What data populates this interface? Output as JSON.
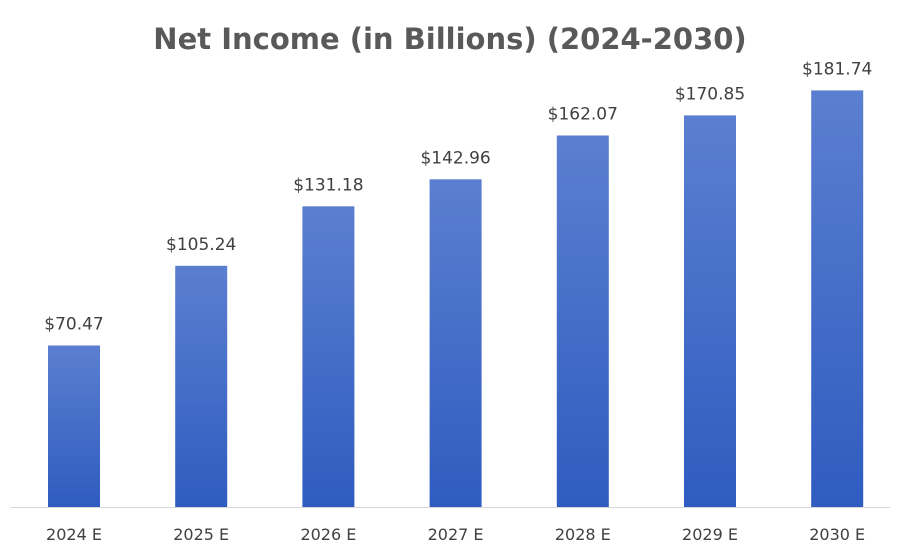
{
  "chart_data": {
    "type": "bar",
    "title": "Net Income (in Billions) (2024-2030)",
    "xlabel": "",
    "ylabel": "",
    "categories": [
      "2024 E",
      "2025 E",
      "2026 E",
      "2027 E",
      "2028 E",
      "2029 E",
      "2030 E"
    ],
    "values": [
      70.47,
      105.24,
      131.18,
      142.96,
      162.07,
      170.85,
      181.74
    ],
    "data_labels": [
      "$70.47",
      "$105.24",
      "$131.18",
      "$142.96",
      "$162.07",
      "$170.85",
      "$181.74"
    ],
    "ylim": [
      0,
      195
    ],
    "grid": false,
    "legend": "none",
    "bar_color_top": "#5b7fd0",
    "bar_color_bottom": "#2f5cc0",
    "axis_color": "#d9d9d9"
  }
}
